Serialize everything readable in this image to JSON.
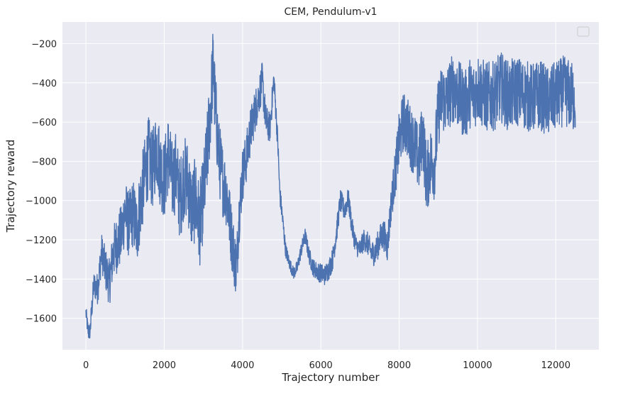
{
  "chart_data": {
    "type": "line",
    "title": "CEM, Pendulum-v1",
    "xlabel": "Trajectory number",
    "ylabel": "Trajectory reward",
    "xlim": [
      -600,
      13100
    ],
    "ylim": [
      -1760,
      -90
    ],
    "xticks": [
      0,
      2000,
      4000,
      6000,
      8000,
      10000,
      12000
    ],
    "yticks": [
      -1600,
      -1400,
      -1200,
      -1000,
      -800,
      -600,
      -400,
      -200
    ],
    "grid": true,
    "legend": "top-right (empty)",
    "colors": {
      "line": "#4c72b0",
      "plot_bg": "#eaeaf2",
      "grid": "#ffffff",
      "text": "#262626"
    },
    "series": [
      {
        "x": [
          0,
          50,
          100,
          150,
          200,
          300,
          400,
          500,
          600,
          700,
          800,
          900,
          1000,
          1100,
          1200,
          1300,
          1400,
          1500,
          1600,
          1700,
          1800,
          1900,
          2000,
          2100,
          2200,
          2300,
          2400,
          2500,
          2600,
          2700,
          2800,
          2900,
          3000,
          3100,
          3200,
          3250,
          3300,
          3400,
          3500,
          3600,
          3700,
          3800,
          3850,
          3900,
          4000,
          4100,
          4200,
          4300,
          4400,
          4500,
          4600,
          4700,
          4800,
          4900,
          4950,
          5000,
          5100,
          5200,
          5300,
          5400,
          5500,
          5600,
          5700,
          5800,
          5900,
          6000,
          6100,
          6200,
          6300,
          6400,
          6500,
          6600,
          6700,
          6800,
          6900,
          7000,
          7100,
          7200,
          7300,
          7400,
          7500,
          7600,
          7700,
          7800,
          7900,
          8000,
          8100,
          8200,
          8300,
          8400,
          8500,
          8600,
          8700,
          8800,
          8900,
          9000,
          9100,
          9200,
          9300,
          9400,
          9500,
          9600,
          9700,
          9800,
          9900,
          10000,
          10200,
          10400,
          10600,
          10800,
          11000,
          11200,
          11400,
          11600,
          11800,
          12000,
          12200,
          12400,
          12500
        ],
        "y": [
          -1570,
          -1660,
          -1680,
          -1550,
          -1430,
          -1450,
          -1260,
          -1350,
          -1420,
          -1260,
          -1220,
          -1180,
          -1050,
          -1130,
          -1060,
          -1150,
          -1000,
          -880,
          -770,
          -850,
          -720,
          -830,
          -900,
          -760,
          -900,
          -850,
          -1000,
          -880,
          -900,
          -1050,
          -990,
          -1130,
          -980,
          -760,
          -470,
          -300,
          -520,
          -780,
          -900,
          -970,
          -1150,
          -1300,
          -1350,
          -1100,
          -870,
          -780,
          -650,
          -560,
          -480,
          -390,
          -600,
          -630,
          -380,
          -700,
          -960,
          -1050,
          -1250,
          -1320,
          -1370,
          -1340,
          -1250,
          -1180,
          -1280,
          -1340,
          -1360,
          -1370,
          -1380,
          -1350,
          -1300,
          -1160,
          -1000,
          -1050,
          -990,
          -1140,
          -1230,
          -1250,
          -1200,
          -1220,
          -1270,
          -1260,
          -1200,
          -1170,
          -1230,
          -1010,
          -860,
          -700,
          -600,
          -620,
          -680,
          -720,
          -800,
          -650,
          -900,
          -800,
          -820,
          -550,
          -470,
          -500,
          -450,
          -420,
          -460,
          -490,
          -510,
          -450,
          -470,
          -420,
          -470,
          -470,
          -420,
          -470,
          -440,
          -460,
          -480,
          -460,
          -500,
          -470,
          -440,
          -470,
          -480
        ],
        "noise_amplitude_by_x": {
          "0": 40,
          "800": 150,
          "1500": 200,
          "3100": 220,
          "4900": 60,
          "5200": 30,
          "6400": 60,
          "7000": 50,
          "7800": 90,
          "8000": 150,
          "8800": 180,
          "12500": 180
        }
      }
    ]
  }
}
